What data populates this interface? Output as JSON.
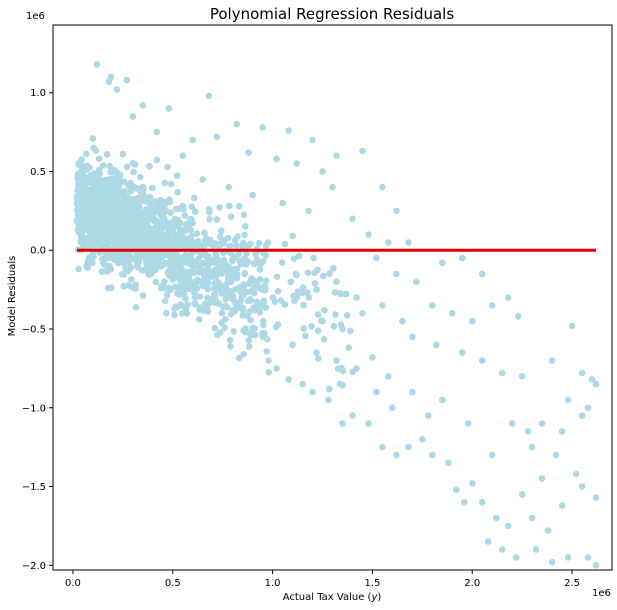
{
  "chart_data": {
    "type": "scatter",
    "title": "Polynomial Regression Residuals",
    "xlabel": "Actual Tax Value (y)",
    "xlabel_main": "Actual Tax Value (",
    "xlabel_var": "y",
    "xlabel_end": ")",
    "ylabel": "Model Residuals",
    "x_offset_label": "1e6",
    "y_offset_label": "1e6",
    "xlim": [
      -0.1,
      2.7
    ],
    "ylim": [
      -2.03,
      1.43
    ],
    "x_ticks": [
      0,
      0.5,
      1.0,
      1.5,
      2.0,
      2.5
    ],
    "x_tick_labels": [
      "0.0",
      "0.5",
      "1.0",
      "1.5",
      "2.0",
      "2.5"
    ],
    "y_ticks": [
      -2.0,
      -1.5,
      -1.0,
      -0.5,
      0.0,
      0.5,
      1.0
    ],
    "y_tick_labels": [
      "−2.0",
      "−1.5",
      "−1.0",
      "−0.5",
      "0.0",
      "0.5",
      "1.0"
    ],
    "grid": false,
    "point_color": "#add8e6",
    "reference_line": {
      "y": 0,
      "x_start": 0.02,
      "x_end": 2.62,
      "color": "#e00000"
    },
    "points": [
      [
        0.12,
        1.18
      ],
      [
        0.18,
        1.07
      ],
      [
        0.22,
        1.02
      ],
      [
        0.27,
        1.08
      ],
      [
        0.19,
        1.1
      ],
      [
        0.35,
        0.92
      ],
      [
        0.48,
        0.9
      ],
      [
        0.68,
        0.98
      ],
      [
        0.82,
        0.8
      ],
      [
        0.95,
        0.78
      ],
      [
        1.08,
        0.76
      ],
      [
        1.2,
        0.7
      ],
      [
        1.45,
        0.63
      ],
      [
        1.32,
        0.6
      ],
      [
        0.42,
        0.75
      ],
      [
        0.3,
        0.85
      ],
      [
        0.6,
        0.7
      ],
      [
        0.72,
        0.72
      ],
      [
        0.88,
        0.62
      ],
      [
        1.02,
        0.58
      ],
      [
        1.12,
        0.55
      ],
      [
        1.25,
        0.5
      ],
      [
        0.55,
        0.6
      ],
      [
        0.65,
        0.45
      ],
      [
        0.78,
        0.4
      ],
      [
        0.9,
        0.35
      ],
      [
        1.05,
        0.3
      ],
      [
        1.18,
        0.25
      ],
      [
        1.3,
        0.4
      ],
      [
        1.4,
        0.2
      ],
      [
        1.55,
        0.4
      ],
      [
        1.62,
        0.25
      ],
      [
        1.48,
        0.1
      ],
      [
        1.58,
        0.05
      ],
      [
        1.68,
        0.05
      ],
      [
        1.52,
        -0.05
      ],
      [
        1.62,
        -0.15
      ],
      [
        1.72,
        -0.2
      ],
      [
        1.85,
        -0.08
      ],
      [
        1.95,
        -0.05
      ],
      [
        2.05,
        -0.15
      ],
      [
        2.1,
        -0.35
      ],
      [
        1.8,
        -0.35
      ],
      [
        1.9,
        -0.4
      ],
      [
        2.0,
        -0.45
      ],
      [
        2.18,
        -0.3
      ],
      [
        2.23,
        -0.42
      ],
      [
        1.7,
        -0.55
      ],
      [
        1.82,
        -0.6
      ],
      [
        1.95,
        -0.65
      ],
      [
        2.05,
        -0.7
      ],
      [
        2.15,
        -0.78
      ],
      [
        2.25,
        -0.8
      ],
      [
        2.4,
        -0.7
      ],
      [
        2.5,
        -0.48
      ],
      [
        2.55,
        -0.78
      ],
      [
        2.6,
        -0.82
      ],
      [
        2.62,
        -0.85
      ],
      [
        2.48,
        -0.95
      ],
      [
        2.55,
        -1.05
      ],
      [
        2.58,
        -1.0
      ],
      [
        2.35,
        -1.1
      ],
      [
        2.3,
        -1.25
      ],
      [
        2.42,
        -1.3
      ],
      [
        2.45,
        -1.15
      ],
      [
        2.52,
        -1.42
      ],
      [
        2.55,
        -1.5
      ],
      [
        2.62,
        -1.57
      ],
      [
        2.58,
        -1.95
      ],
      [
        2.62,
        -2.0
      ],
      [
        2.48,
        -1.95
      ],
      [
        2.38,
        -1.78
      ],
      [
        2.3,
        -1.7
      ],
      [
        2.22,
        -1.95
      ],
      [
        2.15,
        -1.9
      ],
      [
        2.18,
        -1.75
      ],
      [
        2.12,
        -1.7
      ],
      [
        2.05,
        -1.6
      ],
      [
        2.0,
        -1.48
      ],
      [
        1.92,
        -1.52
      ],
      [
        1.88,
        -1.35
      ],
      [
        1.8,
        -1.3
      ],
      [
        1.75,
        -1.2
      ],
      [
        1.68,
        -1.25
      ],
      [
        1.62,
        -1.3
      ],
      [
        1.55,
        -1.25
      ],
      [
        1.48,
        -1.1
      ],
      [
        1.4,
        -1.05
      ],
      [
        1.35,
        -1.1
      ],
      [
        1.28,
        -0.95
      ],
      [
        1.2,
        -0.9
      ],
      [
        1.15,
        -0.85
      ],
      [
        1.08,
        -0.82
      ],
      [
        1.02,
        -0.75
      ],
      [
        0.98,
        -0.7
      ],
      [
        1.1,
        -0.6
      ],
      [
        1.22,
        -0.65
      ],
      [
        1.32,
        -0.7
      ],
      [
        1.42,
        -0.75
      ],
      [
        1.5,
        -0.68
      ],
      [
        1.58,
        -0.8
      ],
      [
        1.25,
        -0.45
      ],
      [
        1.35,
        -0.5
      ],
      [
        1.45,
        -0.4
      ],
      [
        1.55,
        -0.35
      ],
      [
        1.65,
        -0.45
      ],
      [
        1.12,
        -0.3
      ],
      [
        1.22,
        -0.25
      ],
      [
        1.32,
        -0.2
      ],
      [
        1.42,
        -0.3
      ],
      [
        2.35,
        -1.45
      ],
      [
        2.25,
        -1.55
      ],
      [
        2.1,
        -1.3
      ],
      [
        1.98,
        -1.1
      ],
      [
        1.85,
        -0.95
      ],
      [
        2.45,
        -1.62
      ],
      [
        2.32,
        -1.9
      ],
      [
        2.4,
        -1.98
      ],
      [
        2.08,
        -1.85
      ],
      [
        1.96,
        -1.6
      ],
      [
        1.78,
        -1.05
      ],
      [
        1.7,
        -0.9
      ],
      [
        1.6,
        -1.0
      ],
      [
        1.52,
        -0.9
      ],
      [
        2.28,
        -1.15
      ],
      [
        2.2,
        -1.1
      ]
    ]
  }
}
